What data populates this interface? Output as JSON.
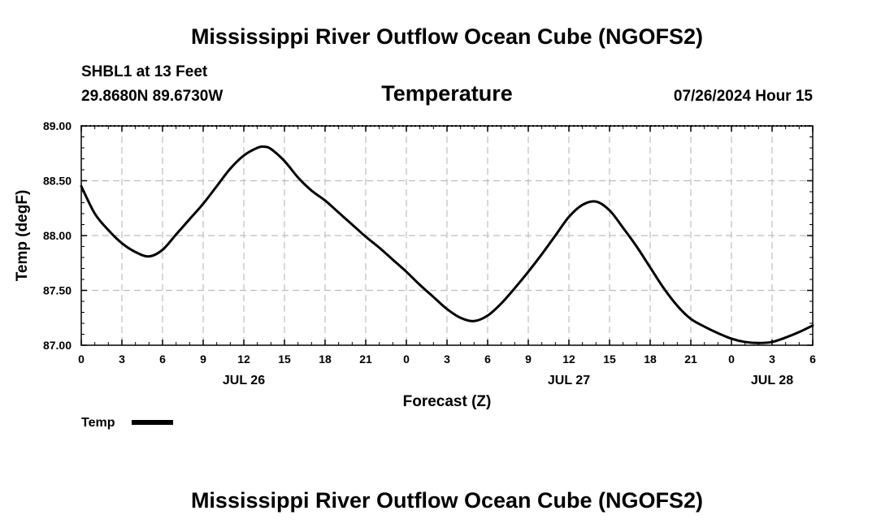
{
  "page": {
    "top_title": "Mississippi River Outflow Ocean Cube (NGOFS2)",
    "bottom_title": "Mississippi River Outflow Ocean Cube (NGOFS2)",
    "station_label": "SHBL1 at 13 Feet",
    "coordinates": "29.8680N  89.6730W",
    "variable": "Temperature",
    "timestamp": "07/26/2024 Hour 15"
  },
  "chart_data": {
    "type": "line",
    "title": "Temperature",
    "xlabel": "Forecast (Z)",
    "ylabel": "Temp (degF)",
    "grid": true,
    "xlim": [
      0,
      54
    ],
    "ylim": [
      87.0,
      89.0
    ],
    "y_ticks": [
      "87.00",
      "87.50",
      "88.00",
      "88.50",
      "89.00"
    ],
    "y_tick_values": [
      87.0,
      87.5,
      88.0,
      88.5,
      89.0
    ],
    "x_tick_values": [
      0,
      3,
      6,
      9,
      12,
      15,
      18,
      21,
      24,
      27,
      30,
      33,
      36,
      39,
      42,
      45,
      48,
      51,
      54
    ],
    "x_tick_labels": [
      "0",
      "3",
      "6",
      "9",
      "12",
      "15",
      "18",
      "21",
      "0",
      "3",
      "6",
      "9",
      "12",
      "15",
      "18",
      "21",
      "0",
      "3",
      "6"
    ],
    "date_labels": [
      {
        "label": "JUL 26",
        "x": 12
      },
      {
        "label": "JUL 27",
        "x": 36
      },
      {
        "label": "JUL 28",
        "x": 51
      }
    ],
    "legend": {
      "label": "Temp",
      "placement": "bottom-left"
    },
    "series": [
      {
        "name": "Temp",
        "color": "#000000",
        "x": [
          0,
          1,
          2,
          3,
          4,
          5,
          6,
          7,
          8,
          9,
          10,
          11,
          12,
          13,
          13.5,
          14,
          15,
          16,
          17,
          18,
          19,
          20,
          21,
          22,
          23,
          24,
          25,
          26,
          27,
          28,
          29,
          30,
          31,
          32,
          33,
          34,
          35,
          36,
          37,
          38,
          39,
          40,
          41,
          42,
          43,
          44,
          45,
          46,
          47,
          48,
          49,
          50,
          51,
          52,
          53,
          54
        ],
        "values": [
          88.45,
          88.2,
          88.05,
          87.93,
          87.85,
          87.81,
          87.87,
          88.01,
          88.15,
          88.29,
          88.45,
          88.61,
          88.73,
          88.8,
          88.81,
          88.79,
          88.68,
          88.53,
          88.41,
          88.32,
          88.21,
          88.1,
          87.99,
          87.89,
          87.78,
          87.67,
          87.55,
          87.44,
          87.33,
          87.25,
          87.22,
          87.27,
          87.38,
          87.52,
          87.67,
          87.83,
          88.0,
          88.17,
          88.28,
          88.31,
          88.23,
          88.07,
          87.9,
          87.71,
          87.52,
          87.36,
          87.24,
          87.17,
          87.11,
          87.06,
          87.03,
          87.02,
          87.03,
          87.07,
          87.12,
          87.18
        ]
      }
    ]
  }
}
